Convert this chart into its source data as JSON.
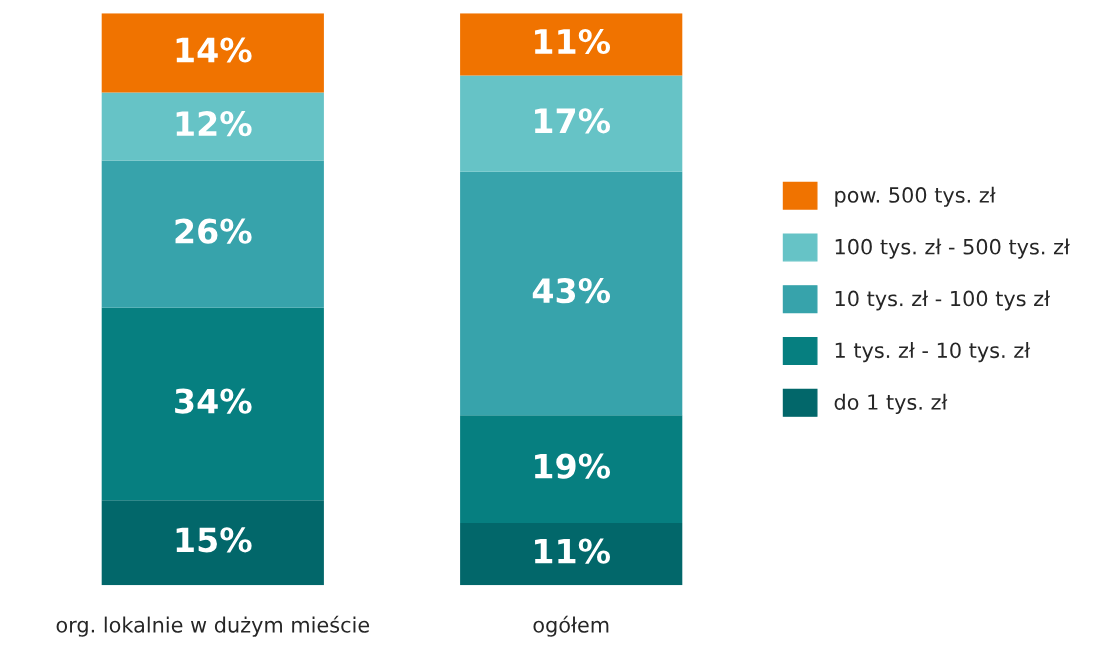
{
  "chart_data": {
    "type": "bar",
    "stacked": true,
    "categories": [
      "org. lokalnie w dużym mieście",
      "ogółem"
    ],
    "series": [
      {
        "name": "do 1 tys. zł",
        "color": "#02676a",
        "values": [
          15,
          11
        ],
        "value_labels": [
          "15%",
          "11%"
        ]
      },
      {
        "name": "1 tys. zł - 10 tys. zł",
        "color": "#067f80",
        "values": [
          34,
          19
        ],
        "value_labels": [
          "34%",
          "19%"
        ]
      },
      {
        "name": "10 tys. zł - 100 tys zł",
        "color": "#37a3ab",
        "values": [
          26,
          43
        ],
        "value_labels": [
          "26%",
          "43%"
        ]
      },
      {
        "name": "100 tys. zł - 500 tys. zł",
        "color": "#66c3c6",
        "values": [
          12,
          17
        ],
        "value_labels": [
          "12%",
          "17%"
        ]
      },
      {
        "name": "pow. 500 tys. zł",
        "color": "#f07300",
        "values": [
          14,
          11
        ],
        "value_labels": [
          "14%",
          "11%"
        ]
      }
    ],
    "legend": "right",
    "grid": false
  }
}
